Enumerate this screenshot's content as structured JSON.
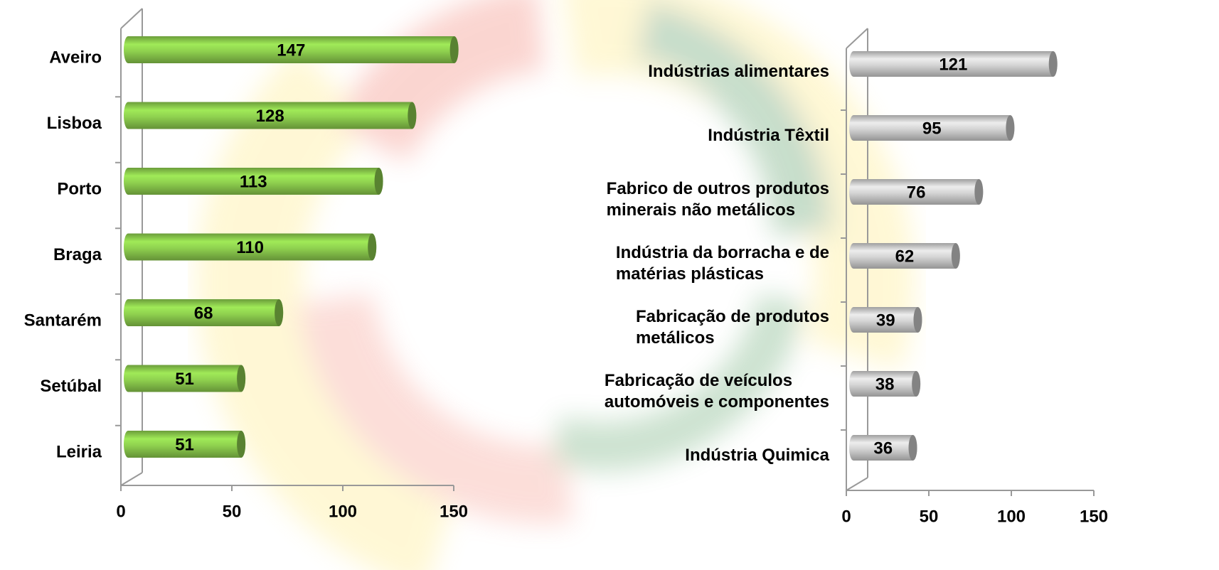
{
  "chart_data": [
    {
      "type": "bar",
      "orientation": "horizontal",
      "categories": [
        "Aveiro",
        "Lisboa",
        "Porto",
        "Braga",
        "Santarém",
        "Setúbal",
        "Leiria"
      ],
      "values": [
        147,
        128,
        113,
        110,
        68,
        51,
        51
      ],
      "color": "#8fd14f",
      "xlim": [
        0,
        150
      ],
      "xticks": [
        0,
        50,
        100,
        150
      ]
    },
    {
      "type": "bar",
      "orientation": "horizontal",
      "categories": [
        "Indústrias alimentares",
        "Indústria Têxtil",
        "Fabrico de outros produtos minerais não metálicos",
        "Indústria da borracha e de matérias plásticas",
        "Fabricação de produtos metálicos",
        "Fabricação de veículos automóveis e componentes",
        "Indústria Quimica"
      ],
      "values": [
        121,
        95,
        76,
        62,
        39,
        38,
        36
      ],
      "color": "#d4d4d4",
      "xlim": [
        0,
        150
      ],
      "xticks": [
        0,
        50,
        100,
        150
      ]
    }
  ]
}
